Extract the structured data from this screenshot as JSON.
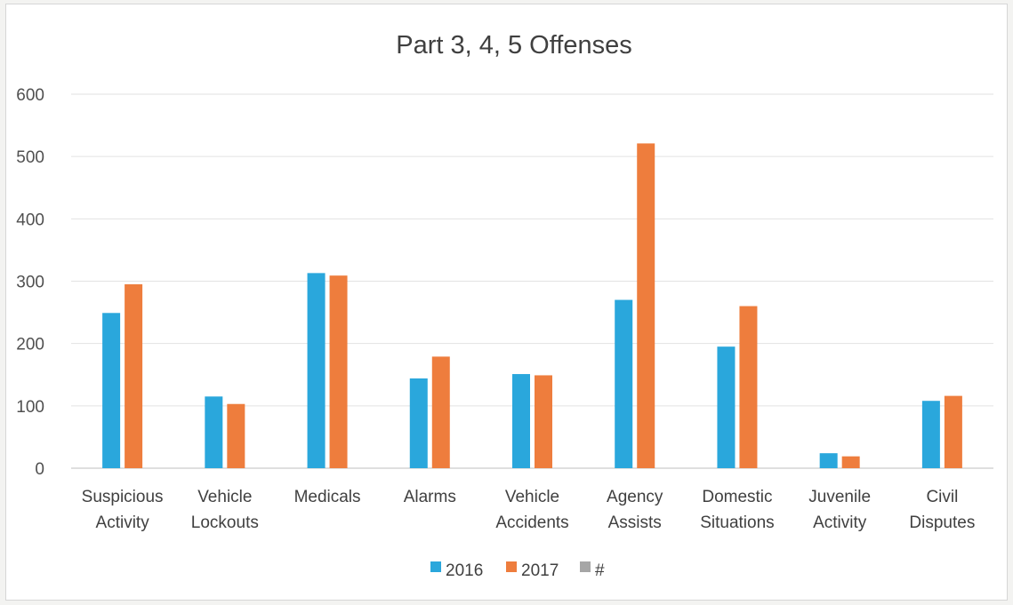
{
  "chart_data": {
    "type": "bar",
    "title": "Part 3, 4, 5 Offenses",
    "categories": [
      [
        "Suspicious",
        "Activity"
      ],
      [
        "Vehicle",
        "Lockouts"
      ],
      [
        "Medicals"
      ],
      [
        "Alarms"
      ],
      [
        "Vehicle",
        "Accidents"
      ],
      [
        "Agency",
        "Assists"
      ],
      [
        "Domestic",
        "Situations"
      ],
      [
        "Juvenile",
        "Activity"
      ],
      [
        "Civil",
        "Disputes"
      ]
    ],
    "series": [
      {
        "name": "2016",
        "color": "#2aa7dc",
        "values": [
          249,
          115,
          313,
          144,
          151,
          270,
          195,
          24,
          108
        ]
      },
      {
        "name": "2017",
        "color": "#ee7d3d",
        "values": [
          295,
          103,
          309,
          179,
          149,
          521,
          260,
          19,
          116
        ]
      },
      {
        "name": "#",
        "color": "#a6a6a6",
        "values": [
          0,
          0,
          0,
          0,
          0,
          0,
          0,
          0,
          0
        ]
      }
    ],
    "ylim": [
      0,
      600
    ],
    "yticks": [
      0,
      100,
      200,
      300,
      400,
      500,
      600
    ],
    "grid": true,
    "legend": "bottom-center"
  }
}
